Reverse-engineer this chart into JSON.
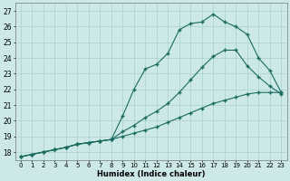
{
  "title": "",
  "xlabel": "Humidex (Indice chaleur)",
  "ylabel": "",
  "xlim": [
    -0.5,
    23.5
  ],
  "ylim": [
    17.5,
    27.5
  ],
  "xticks": [
    0,
    1,
    2,
    3,
    4,
    5,
    6,
    7,
    8,
    9,
    10,
    11,
    12,
    13,
    14,
    15,
    16,
    17,
    18,
    19,
    20,
    21,
    22,
    23
  ],
  "yticks": [
    18,
    19,
    20,
    21,
    22,
    23,
    24,
    25,
    26,
    27
  ],
  "bg_color": "#cce9e7",
  "line_color": "#1a6b60",
  "grid_color": "#afd4d0",
  "line1_x": [
    0,
    1,
    2,
    3,
    4,
    5,
    6,
    7,
    8,
    9,
    10,
    11,
    12,
    13,
    14,
    15,
    16,
    17,
    18,
    19,
    20,
    21,
    22,
    23
  ],
  "line1_y": [
    17.7,
    17.85,
    18.0,
    18.15,
    18.3,
    18.5,
    18.6,
    18.7,
    18.8,
    20.3,
    22.0,
    23.3,
    23.6,
    24.3,
    25.8,
    26.2,
    26.3,
    26.8,
    26.3,
    26.0,
    25.5,
    24.0,
    23.2,
    21.8
  ],
  "line2_x": [
    0,
    1,
    2,
    3,
    4,
    5,
    6,
    7,
    8,
    9,
    10,
    11,
    12,
    13,
    14,
    15,
    16,
    17,
    18,
    19,
    20,
    21,
    22,
    23
  ],
  "line2_y": [
    17.7,
    17.85,
    18.0,
    18.15,
    18.3,
    18.5,
    18.6,
    18.7,
    18.8,
    19.3,
    19.7,
    20.2,
    20.6,
    21.1,
    21.8,
    22.6,
    23.4,
    24.1,
    24.5,
    24.5,
    23.5,
    22.8,
    22.2,
    21.7
  ],
  "line3_x": [
    0,
    1,
    2,
    3,
    4,
    5,
    6,
    7,
    8,
    9,
    10,
    11,
    12,
    13,
    14,
    15,
    16,
    17,
    18,
    19,
    20,
    21,
    22,
    23
  ],
  "line3_y": [
    17.7,
    17.85,
    18.0,
    18.15,
    18.3,
    18.5,
    18.6,
    18.7,
    18.8,
    19.0,
    19.2,
    19.4,
    19.6,
    19.9,
    20.2,
    20.5,
    20.8,
    21.1,
    21.3,
    21.5,
    21.7,
    21.8,
    21.8,
    21.8
  ]
}
